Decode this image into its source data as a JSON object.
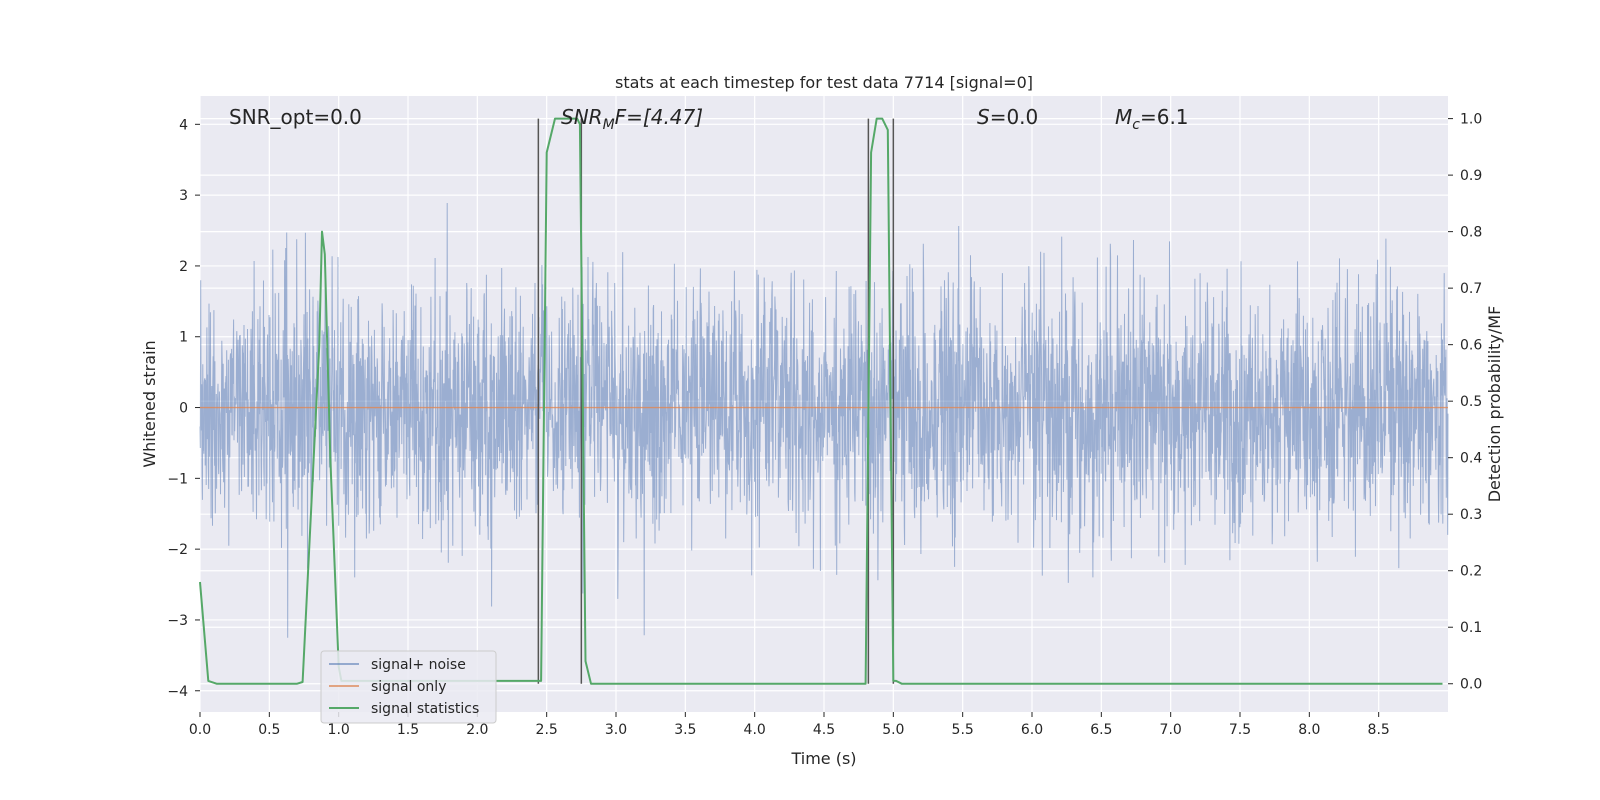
{
  "chart_data": {
    "type": "line",
    "title": "stats at each timestep for test data 7714 [signal=0]",
    "xlabel": "Time (s)",
    "ylabel": "Whitened strain",
    "y2label": "Detection probability/MF",
    "xlim": [
      0,
      9
    ],
    "ylim": [
      -4.3,
      4.4
    ],
    "y2lim": [
      -0.05,
      1.04
    ],
    "x_ticks": [
      "0.0",
      "0.5",
      "1.0",
      "1.5",
      "2.0",
      "2.5",
      "3.0",
      "3.5",
      "4.0",
      "4.5",
      "5.0",
      "5.5",
      "6.0",
      "6.5",
      "7.0",
      "7.5",
      "8.0",
      "8.5"
    ],
    "y_ticks": [
      "4",
      "3",
      "2",
      "1",
      "0",
      "−1",
      "−2",
      "−3",
      "−4"
    ],
    "y2_ticks": [
      "1.0",
      "0.9",
      "0.8",
      "0.7",
      "0.6",
      "0.5",
      "0.4",
      "0.3",
      "0.2",
      "0.1",
      "0.0"
    ],
    "grid": true,
    "legend_position": "lower-left",
    "annotations": {
      "snr_opt": "SNR_opt=0.0",
      "snr_mf_main": "SNR",
      "snr_mf_sub": "M",
      "snr_mf_rest": "F=[4.47]",
      "s_main": "S",
      "s_rest": "=0.0",
      "mc_main": "M",
      "mc_sub": "c",
      "mc_rest": "=6.1"
    },
    "vertical_markers_x": [
      2.44,
      2.75,
      4.82,
      5.0
    ],
    "series": [
      {
        "name": "signal+ noise",
        "color": "#4c72b0",
        "axis": "left",
        "style": "noise",
        "envelope": {
          "upper": 3.7,
          "lower": -3.7
        }
      },
      {
        "name": "signal only",
        "color": "#dd8452",
        "axis": "left",
        "x": [
          0,
          9
        ],
        "y": [
          0,
          0
        ]
      },
      {
        "name": "signal statistics",
        "color": "#55a868",
        "axis": "right",
        "x": [
          0.0,
          0.06,
          0.12,
          0.7,
          0.74,
          0.86,
          0.88,
          0.9,
          0.94,
          1.0,
          1.02,
          2.42,
          2.46,
          2.5,
          2.56,
          2.72,
          2.74,
          2.78,
          2.82,
          2.88,
          4.8,
          4.84,
          4.88,
          4.92,
          4.96,
          5.0,
          5.02,
          5.06,
          5.1,
          8.96
        ],
        "y": [
          0.18,
          0.005,
          0.0,
          0.0,
          0.003,
          0.6,
          0.8,
          0.76,
          0.4,
          0.03,
          0.005,
          0.005,
          0.005,
          0.94,
          1.0,
          1.0,
          0.99,
          0.04,
          0.0,
          0.0,
          0.0,
          0.94,
          1.0,
          1.0,
          0.98,
          0.005,
          0.005,
          0.0,
          0.0,
          0.0
        ]
      }
    ]
  }
}
